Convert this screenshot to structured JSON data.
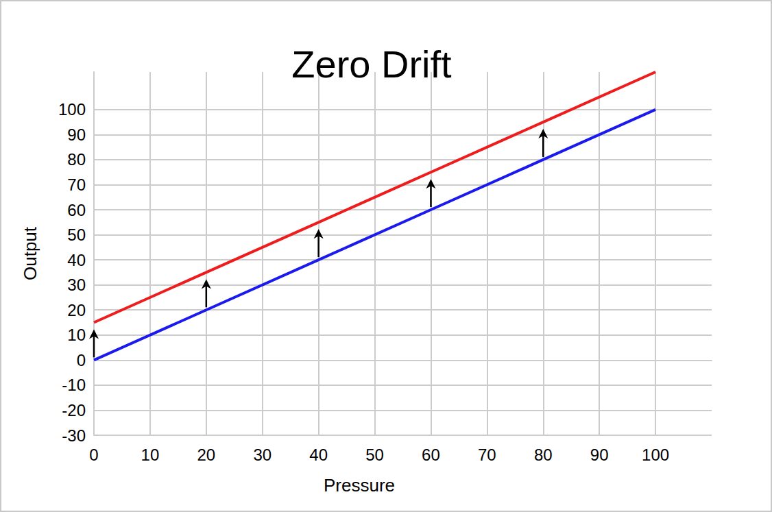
{
  "chart_data": {
    "type": "line",
    "title": "Zero Drift",
    "x_label": "Pressure",
    "y_label": "Output",
    "x": [
      0,
      20,
      40,
      60,
      80,
      100
    ],
    "series": [
      {
        "color": "#1a1aee",
        "values": [
          0,
          20,
          40,
          60,
          80,
          100
        ]
      },
      {
        "color": "#ee1c1c",
        "values": [
          15,
          35,
          55,
          75,
          95,
          115
        ]
      }
    ],
    "xlim": [
      0,
      110
    ],
    "xticks": [
      0,
      10,
      20,
      30,
      40,
      50,
      60,
      70,
      80,
      90,
      100
    ],
    "ylim": [
      -30,
      115
    ],
    "yticks": [
      -30,
      -20,
      -10,
      0,
      10,
      20,
      30,
      40,
      50,
      60,
      70,
      80,
      90,
      100
    ],
    "grid": true
  }
}
